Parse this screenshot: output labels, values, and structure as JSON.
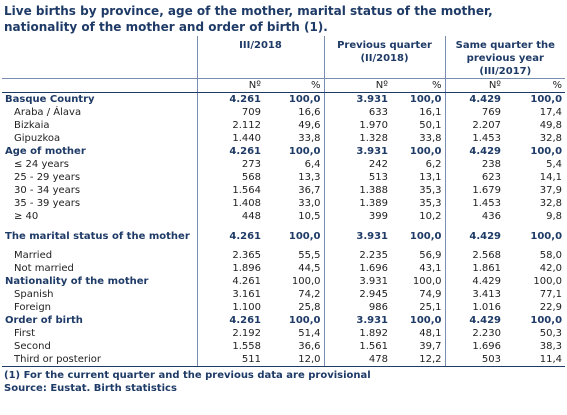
{
  "title": "Live births by province, age of the mother, marital status of the mother, nationality of the mother and order of birth (1).",
  "columns": {
    "period1": "III/2018",
    "period2": "Previous quarter (II/2018)",
    "period3": "Same quarter the previous year (III/2017)",
    "num": "Nº",
    "pct": "%"
  },
  "rows": [
    {
      "label": "Basque Country",
      "type": "hd",
      "v": [
        "4.261",
        "100,0",
        "3.931",
        "100,0",
        "4.429",
        "100,0"
      ]
    },
    {
      "label": "Araba / Álava",
      "type": "sub",
      "v": [
        "709",
        "16,6",
        "633",
        "16,1",
        "769",
        "17,4"
      ]
    },
    {
      "label": "Bizkaia",
      "type": "sub",
      "v": [
        "2.112",
        "49,6",
        "1.970",
        "50,1",
        "2.207",
        "49,8"
      ]
    },
    {
      "label": "Gipuzkoa",
      "type": "sub",
      "v": [
        "1.440",
        "33,8",
        "1.328",
        "33,8",
        "1.453",
        "32,8"
      ]
    },
    {
      "label": "Age of mother",
      "type": "hd",
      "v": [
        "4.261",
        "100,0",
        "3.931",
        "100,0",
        "4.429",
        "100,0"
      ]
    },
    {
      "label": "≤ 24 years",
      "type": "sub",
      "v": [
        "273",
        "6,4",
        "242",
        "6,2",
        "238",
        "5,4"
      ]
    },
    {
      "label": "25 - 29 years",
      "type": "sub",
      "v": [
        "568",
        "13,3",
        "513",
        "13,1",
        "623",
        "14,1"
      ]
    },
    {
      "label": "30 - 34 years",
      "type": "sub",
      "v": [
        "1.564",
        "36,7",
        "1.388",
        "35,3",
        "1.679",
        "37,9"
      ]
    },
    {
      "label": "35 - 39 years",
      "type": "sub",
      "v": [
        "1.408",
        "33,0",
        "1.389",
        "35,3",
        "1.453",
        "32,8"
      ]
    },
    {
      "label": "≥ 40",
      "type": "sub",
      "v": [
        "448",
        "10,5",
        "399",
        "10,2",
        "436",
        "9,8"
      ]
    },
    {
      "label": "The marital status of the mother",
      "type": "hd tall",
      "v": [
        "4.261",
        "100,0",
        "3.931",
        "100,0",
        "4.429",
        "100,0"
      ]
    },
    {
      "label": "Married",
      "type": "sub",
      "v": [
        "2.365",
        "55,5",
        "2.235",
        "56,9",
        "2.568",
        "58,0"
      ]
    },
    {
      "label": "Not married",
      "type": "sub",
      "v": [
        "1.896",
        "44,5",
        "1.696",
        "43,1",
        "1.861",
        "42,0"
      ]
    },
    {
      "label": "Nationality of the mother",
      "type": "hd2",
      "v": [
        "4.261",
        "100,0",
        "3.931",
        "100,0",
        "4.429",
        "100,0"
      ]
    },
    {
      "label": "Spanish",
      "type": "sub",
      "v": [
        "3.161",
        "74,2",
        "2.945",
        "74,9",
        "3.413",
        "77,1"
      ]
    },
    {
      "label": "Foreign",
      "type": "sub",
      "v": [
        "1.100",
        "25,8",
        "986",
        "25,1",
        "1.016",
        "22,9"
      ]
    },
    {
      "label": "Order of birth",
      "type": "hd",
      "v": [
        "4.261",
        "100,0",
        "3.931",
        "100,0",
        "4.429",
        "100,0"
      ]
    },
    {
      "label": "First",
      "type": "sub",
      "v": [
        "2.192",
        "51,4",
        "1.892",
        "48,1",
        "2.230",
        "50,3"
      ]
    },
    {
      "label": "Second",
      "type": "sub",
      "v": [
        "1.558",
        "36,6",
        "1.561",
        "39,7",
        "1.696",
        "38,3"
      ]
    },
    {
      "label": "Third or posterior",
      "type": "sub last",
      "v": [
        "511",
        "12,0",
        "478",
        "12,2",
        "503",
        "11,4"
      ]
    }
  ],
  "footnote1": "(1) For the current quarter and the previous data are provisional",
  "footnote2": "Source: Eustat. Birth statistics",
  "colors": {
    "heading": "#1e3a66",
    "text": "#1f1f1f",
    "rule": "#7a8fb0"
  }
}
